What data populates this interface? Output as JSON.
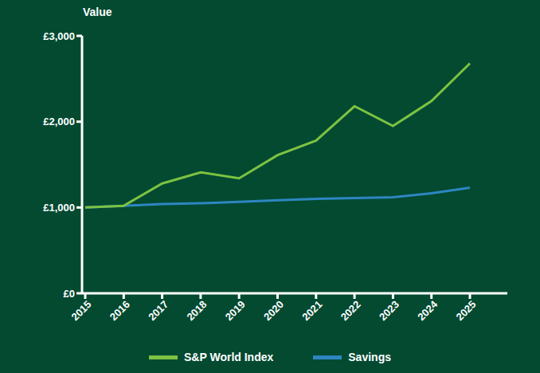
{
  "chart_data": {
    "type": "line",
    "y_label": "Value",
    "categories": [
      "2015",
      "2016",
      "2017",
      "2018",
      "2019",
      "2020",
      "2021",
      "2022",
      "2023",
      "2024",
      "2025"
    ],
    "series": [
      {
        "name": "S&P World Index",
        "color": "#7dc242",
        "values": [
          1000,
          1020,
          1280,
          1410,
          1340,
          1610,
          1780,
          2180,
          1950,
          2240,
          2680
        ]
      },
      {
        "name": "Savings",
        "color": "#2e86c1",
        "values": [
          1000,
          1020,
          1040,
          1050,
          1065,
          1085,
          1100,
          1110,
          1120,
          1165,
          1230
        ]
      }
    ],
    "ylim": [
      0,
      3000
    ],
    "yticks": [
      {
        "value": 0,
        "label": "£0"
      },
      {
        "value": 1000,
        "label": "£1,000"
      },
      {
        "value": 2000,
        "label": "£2,000"
      },
      {
        "value": 3000,
        "label": "£3,000"
      }
    ],
    "grid": false,
    "legend": "bottom"
  }
}
